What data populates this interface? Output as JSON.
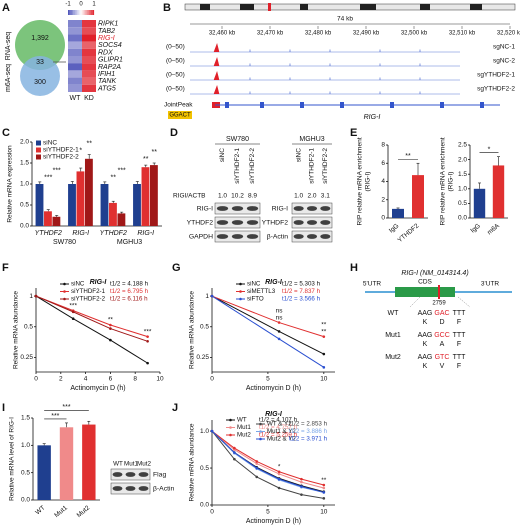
{
  "A": {
    "letter": "A",
    "venn": {
      "top_label": "RNA-seq",
      "bottom_label": "m6A-seq",
      "top_count": "1,392",
      "overlap_count": "33",
      "bottom_count": "300",
      "top_color": "#7cc47c",
      "bottom_color": "#86b4e0"
    },
    "heatmap": {
      "scale_ticks": [
        -1,
        0,
        1
      ],
      "columns": [
        "WT",
        "KD"
      ],
      "low_color": "#4a4fb8",
      "mid_color": "#ffffff",
      "high_color": "#e0202a",
      "genes": [
        {
          "name": "RIPK1",
          "color": "#111111",
          "values": [
            -0.7,
            0.9
          ]
        },
        {
          "name": "TAB2",
          "color": "#111111",
          "values": [
            -0.6,
            0.8
          ]
        },
        {
          "name": "RIG-I",
          "color": "#e0202a",
          "values": [
            -0.8,
            1
          ]
        },
        {
          "name": "SOCS4",
          "color": "#111111",
          "values": [
            -0.5,
            0.7
          ]
        },
        {
          "name": "RDX",
          "color": "#111111",
          "values": [
            -0.7,
            0.9
          ]
        },
        {
          "name": "GLIPR1",
          "color": "#111111",
          "values": [
            -0.6,
            0.8
          ]
        },
        {
          "name": "RAP2A",
          "color": "#111111",
          "values": [
            -0.9,
            0.9
          ]
        },
        {
          "name": "IFIH1",
          "color": "#111111",
          "values": [
            -0.5,
            0.8
          ]
        },
        {
          "name": "TANK",
          "color": "#111111",
          "values": [
            -0.7,
            0.7
          ]
        },
        {
          "name": "ATG5",
          "color": "#111111",
          "values": [
            -0.6,
            0.9
          ]
        }
      ]
    }
  },
  "B": {
    "letter": "B",
    "scale_label": "74 kb",
    "positions": [
      "32,460 kb",
      "32,470 kb",
      "32,480 kb",
      "32,490 kb",
      "32,500 kb",
      "32,510 kb",
      "32,520 kb"
    ],
    "tracks": [
      {
        "range": "(0–50)",
        "name": "sgNC-1"
      },
      {
        "range": "(0–50)",
        "name": "sgNC-2"
      },
      {
        "range": "(0–50)",
        "name": "sgYTHDF2-1"
      },
      {
        "range": "(0–50)",
        "name": "sgYTHDF2-2"
      }
    ],
    "peak_label": "JointPeak",
    "motif": "GGACT",
    "gene": "RIG-I",
    "track_color": "#3355cc",
    "peak_color": "#e0202a"
  },
  "C": {
    "letter": "C",
    "chart": {
      "type": "bar",
      "ylabel": [
        "Relative mRNA expression"
      ],
      "ylim": [
        0,
        2
      ],
      "yticks": [
        {
          "value": 0,
          "label": "0.0"
        },
        0.5,
        {
          "value": 1,
          "label": "1.0"
        },
        1.5,
        {
          "value": 2,
          "label": "2.0"
        }
      ],
      "groups": [
        {
          "name": "SW780",
          "categories": [
            "YTHDF2",
            "RIG-I"
          ]
        },
        {
          "name": "MGHU3",
          "categories": [
            "YTHDF2",
            "RIG-I"
          ]
        }
      ],
      "series": [
        {
          "name": "siNC",
          "color": "#1f3f8f",
          "values": [
            1,
            1,
            1,
            1
          ],
          "errors": [
            0.05,
            0.06,
            0.05,
            0.06
          ]
        },
        {
          "name": "siYTHDF2-1",
          "color": "#e03030",
          "values": [
            0.35,
            1.3,
            0.55,
            1.4
          ],
          "errors": [
            0.04,
            0.08,
            0.04,
            0.05
          ]
        },
        {
          "name": "siYTHDF2-2",
          "color": "#a01818",
          "values": [
            0.22,
            1.6,
            0.3,
            1.45
          ],
          "errors": [
            0.03,
            0.1,
            0.03,
            0.05
          ]
        }
      ],
      "annotations": [
        [
          "***",
          "***"
        ],
        [
          "*",
          "**"
        ],
        [
          "**",
          "***"
        ],
        [
          "**",
          "**"
        ]
      ]
    }
  },
  "D": {
    "letter": "D",
    "ratio_label": "RIGI/ACTB",
    "cell_lines": [
      {
        "name": "SW780",
        "lanes": [
          "siNC",
          "siYTHDF2-1",
          "siYTHDF2-2"
        ],
        "ratios": [
          "1.0",
          "10.2",
          "8.9"
        ],
        "bands": [
          "RIG-I",
          "YTHDF2",
          "GAPDH"
        ]
      },
      {
        "name": "MGHU3",
        "lanes": [
          "siNC",
          "siYTHDF2-1",
          "siYTHDF2-2"
        ],
        "ratios": [
          "1.0",
          "2.0",
          "3.1"
        ],
        "bands": [
          "RIG-I",
          "YTHDF2",
          "β-Actin"
        ]
      }
    ]
  },
  "E": {
    "letter": "E",
    "charts": [
      {
        "type": "bar",
        "ylabel": [
          "RIP relative mRNA enrichment",
          "(RIG-I)"
        ],
        "ylim": [
          0,
          8
        ],
        "yticks": [
          0,
          2,
          4,
          6,
          8
        ],
        "categories": [
          "IgG",
          "YTHDF2"
        ],
        "values": [
          1,
          4.7
        ],
        "errors": [
          0.1,
          1.3
        ],
        "colors": [
          "#1f3f8f",
          "#e03030"
        ],
        "annotations": [
          "**"
        ]
      },
      {
        "type": "bar",
        "ylabel": [
          "RIP relative mRNA enrichment",
          "(RIG-I)"
        ],
        "ylim": [
          0,
          2.5
        ],
        "yticks": [
          {
            "value": 0,
            "label": "0.0"
          },
          0.5,
          {
            "value": 1,
            "label": "1.0"
          },
          1.5,
          {
            "value": 2,
            "label": "2.0"
          },
          2.5
        ],
        "categories": [
          "IgG",
          "m6A"
        ],
        "values": [
          1,
          1.8
        ],
        "errors": [
          0.2,
          0.3
        ],
        "colors": [
          "#1f3f8f",
          "#e03030"
        ],
        "annotations": [
          "*"
        ]
      }
    ]
  },
  "F": {
    "letter": "F",
    "chart": {
      "type": "line",
      "title": "RIG-I",
      "xlabel": "Actinomycin D (h)",
      "ylabel": "Relative mRNA abundance",
      "log_scale": true,
      "x": [
        0,
        3,
        6,
        9
      ],
      "xlim": [
        0,
        10
      ],
      "xticks": [
        0,
        2,
        4,
        6,
        8,
        10
      ],
      "ylim": [
        0.18,
        1.2
      ],
      "yticks": [
        0.25,
        0.5,
        1
      ],
      "series": [
        {
          "name": "siNC",
          "half_life": "t1/2 = 4.188 h",
          "color": "#111111",
          "values": [
            1,
            0.6,
            0.37,
            0.22
          ]
        },
        {
          "name": "siYTHDF2-1",
          "half_life": "t1/2 = 6.795 h",
          "color": "#e03030",
          "values": [
            1,
            0.72,
            0.52,
            0.4
          ]
        },
        {
          "name": "siYTHDF2-2",
          "half_life": "t1/2 = 6.116 h",
          "color": "#a01818",
          "values": [
            1,
            0.7,
            0.48,
            0.36
          ]
        }
      ],
      "annotations": [
        {
          "x": 3,
          "labels": [
            "***"
          ]
        },
        {
          "x": 6,
          "labels": [
            "**"
          ]
        },
        {
          "x": 9,
          "labels": [
            "***"
          ]
        }
      ]
    }
  },
  "G": {
    "letter": "G",
    "chart": {
      "type": "line",
      "title": "RIG-I",
      "xlabel": "Actinomycin D (h)",
      "ylabel": "Relative mRNA abundance",
      "log_scale": true,
      "x": [
        0,
        6,
        10
      ],
      "xlim": [
        0,
        11
      ],
      "xticks": [
        0,
        5,
        10
      ],
      "ylim": [
        0.18,
        1.2
      ],
      "yticks": [
        0.25,
        0.5,
        1
      ],
      "series": [
        {
          "name": "siNC",
          "half_life": "t1/2 = 5.303 h",
          "color": "#111111",
          "values": [
            1,
            0.45,
            0.27
          ]
        },
        {
          "name": "siMETTL3",
          "half_life": "t1/2 = 7.837 h",
          "color": "#e03030",
          "values": [
            1,
            0.55,
            0.4
          ]
        },
        {
          "name": "siFTO",
          "half_life": "t1/2 = 3.566 h",
          "color": "#2a4fd0",
          "values": [
            1,
            0.38,
            0.2
          ]
        }
      ],
      "annotations": [
        {
          "x": 6,
          "labels": [
            "ns",
            "ns"
          ]
        },
        {
          "x": 10,
          "labels": [
            "**",
            "**"
          ]
        }
      ]
    }
  },
  "H": {
    "letter": "H",
    "title": "RIG-I (NM_014314.4)",
    "utr5": "5'UTR",
    "cds": "CDS",
    "utr3": "3'UTR",
    "site": "2759",
    "rows": [
      {
        "name": "WT",
        "codons": [
          "AAG",
          "GAC",
          "TTT"
        ],
        "residues": [
          "K",
          "D",
          "F"
        ]
      },
      {
        "name": "Mut1",
        "codons": [
          "AAG",
          "GCC",
          "TTT"
        ],
        "residues": [
          "K",
          "A",
          "F"
        ]
      },
      {
        "name": "Mut2",
        "codons": [
          "AAG",
          "GTC",
          "TTT"
        ],
        "residues": [
          "K",
          "V",
          "F"
        ]
      }
    ]
  },
  "I": {
    "letter": "I",
    "chart": {
      "type": "bar",
      "ylabel": [
        "Relative mRNA level of RIG-I"
      ],
      "ylim": [
        0,
        1.5
      ],
      "yticks": [
        {
          "value": 0,
          "label": "0.0"
        },
        0.5,
        {
          "value": 1,
          "label": "1.0"
        },
        1.5
      ],
      "categories": [
        "WT",
        "Mut1",
        "Mut2"
      ],
      "values": [
        1,
        1.33,
        1.38
      ],
      "errors": [
        0.03,
        0.08,
        0.06
      ],
      "colors": [
        "#1f3f8f",
        "#f08a8a",
        "#e03030"
      ],
      "annotations": [
        "***",
        "***"
      ]
    },
    "blot": {
      "lanes": [
        "WT",
        "Mut1",
        "Mut2"
      ],
      "bands": [
        "Flag",
        "β-Actin"
      ]
    }
  },
  "J": {
    "letter": "J",
    "chart": {
      "type": "line",
      "title": "RIG-I",
      "xlabel": "Actinomycin D (h)",
      "ylabel": "Relative mRNA abundance",
      "log_scale": false,
      "x": [
        0,
        2,
        4,
        6,
        8,
        10
      ],
      "xlim": [
        0,
        11
      ],
      "xticks": [
        0,
        5,
        10
      ],
      "ylim": [
        0,
        1.15
      ],
      "yticks": [
        {
          "value": 0,
          "label": "0.0"
        },
        0.5,
        {
          "value": 1,
          "label": "1.0"
        }
      ],
      "series": [
        {
          "name": "WT",
          "half_life": "t1/2 = 4.107 h",
          "color": "#111111",
          "values": [
            1,
            0.71,
            0.51,
            0.36,
            0.26,
            0.18
          ]
        },
        {
          "name": "Mut1",
          "half_life": "t1/2 = 4.757 h",
          "color": "#f08a8a",
          "values": [
            1,
            0.75,
            0.56,
            0.42,
            0.31,
            0.23
          ]
        },
        {
          "name": "Mut2",
          "half_life": "t1/2 = 5.259 h",
          "color": "#e03030",
          "values": [
            1,
            0.77,
            0.59,
            0.45,
            0.35,
            0.27
          ]
        },
        {
          "name": "WT & Y2",
          "half_life": "t1/2 = 2.853 h",
          "color": "#444444",
          "values": [
            1,
            0.62,
            0.38,
            0.23,
            0.14,
            0.09
          ]
        },
        {
          "name": "Mut1 & Y2",
          "half_life": "t1/2 = 3.886 h",
          "color": "#7aa6e8",
          "values": [
            1,
            0.7,
            0.49,
            0.34,
            0.24,
            0.17
          ]
        },
        {
          "name": "Mut2 & Y2",
          "half_life": "t1/2 = 3.971 h",
          "color": "#2a4fd0",
          "values": [
            1,
            0.71,
            0.5,
            0.35,
            0.25,
            0.17
          ]
        }
      ],
      "annotations": [
        {
          "x": 6,
          "labels": [
            "*"
          ]
        },
        {
          "x": 10,
          "labels": [
            "**"
          ]
        }
      ]
    }
  }
}
